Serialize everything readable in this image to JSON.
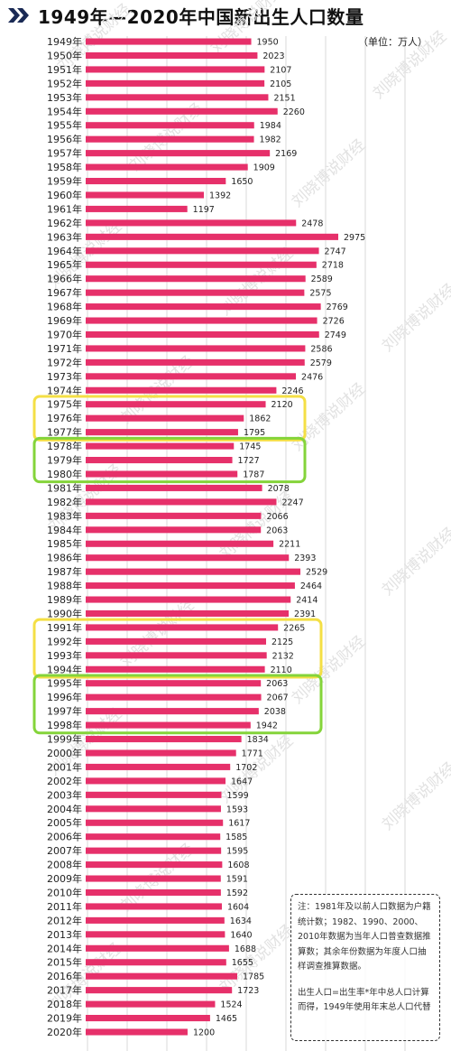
{
  "title": "1949年—2020年中国新出生人口数量",
  "unit": "（单位：万人）",
  "watermark": "刘晓博说财经",
  "note": {
    "para1": "注：1981年及以前人口数据为户籍统计数；1982、1990、2000、2010年数据为当年人口普查数据推算数；其余年份数据为年度人口抽样调查推算数据。",
    "para2": "出生人口=出生率*年中总人口计算而得，1949年使用年末总人口代替"
  },
  "colors": {
    "bar": "#e6306a",
    "bar_shadow": "#f4a9c0",
    "highlight_yellow": "#f4df45",
    "highlight_green": "#84d43a",
    "background_stripe": "#ececec"
  },
  "highlight_groups": [
    {
      "color": "yellow",
      "years": [
        "1975年",
        "1976年",
        "1977年"
      ]
    },
    {
      "color": "green",
      "years": [
        "1978年",
        "1979年",
        "1980年"
      ]
    },
    {
      "color": "yellow",
      "years": [
        "1991年",
        "1992年",
        "1993年",
        "1994年"
      ]
    },
    {
      "color": "green",
      "years": [
        "1995年",
        "1996年",
        "1997年",
        "1998年"
      ]
    }
  ],
  "chart_data": {
    "type": "bar",
    "orientation": "horizontal",
    "title": "1949年—2020年中国新出生人口数量",
    "unit": "万人",
    "categories": [
      "1949年",
      "1950年",
      "1951年",
      "1952年",
      "1953年",
      "1954年",
      "1955年",
      "1956年",
      "1957年",
      "1958年",
      "1959年",
      "1960年",
      "1961年",
      "1962年",
      "1963年",
      "1964年",
      "1965年",
      "1966年",
      "1967年",
      "1968年",
      "1969年",
      "1970年",
      "1971年",
      "1972年",
      "1973年",
      "1974年",
      "1975年",
      "1976年",
      "1977年",
      "1978年",
      "1979年",
      "1980年",
      "1981年",
      "1982年",
      "1983年",
      "1984年",
      "1985年",
      "1986年",
      "1987年",
      "1988年",
      "1989年",
      "1990年",
      "1991年",
      "1992年",
      "1993年",
      "1994年",
      "1995年",
      "1996年",
      "1997年",
      "1998年",
      "1999年",
      "2000年",
      "2001年",
      "2002年",
      "2003年",
      "2004年",
      "2005年",
      "2006年",
      "2007年",
      "2008年",
      "2009年",
      "2010年",
      "2011年",
      "2012年",
      "2013年",
      "2014年",
      "2015年",
      "2016年",
      "2017年",
      "2018年",
      "2019年",
      "2020年"
    ],
    "values": [
      1950,
      2023,
      2107,
      2105,
      2151,
      2260,
      1984,
      1982,
      2169,
      1909,
      1650,
      1392,
      1197,
      2478,
      2975,
      2747,
      2718,
      2589,
      2575,
      2769,
      2726,
      2749,
      2586,
      2579,
      2476,
      2246,
      2120,
      1862,
      1795,
      1745,
      1727,
      1787,
      2078,
      2247,
      2066,
      2063,
      2211,
      2393,
      2529,
      2464,
      2414,
      2391,
      2265,
      2125,
      2132,
      2110,
      2063,
      2067,
      2038,
      1942,
      1834,
      1771,
      1702,
      1647,
      1599,
      1593,
      1617,
      1585,
      1595,
      1608,
      1591,
      1592,
      1604,
      1634,
      1640,
      1688,
      1655,
      1785,
      1723,
      1524,
      1465,
      1200
    ],
    "value_labels": [
      "1950",
      "2023",
      "2107",
      "2105",
      "2151",
      "2260",
      "1984",
      "1982",
      "2169",
      "1909",
      "1650",
      "1392",
      "1197",
      "2478",
      "2975",
      "2747",
      "2718",
      "2589",
      "2575",
      "2769",
      "2726",
      "2749",
      "2586",
      "2579",
      "2476",
      "2246",
      "2120",
      "1862",
      "1795",
      "1745",
      "1727",
      "1787",
      "2078",
      "2247",
      "2066",
      "2063",
      "2211",
      "2393",
      "2529",
      "2464",
      "2414",
      "2391",
      "2265",
      "2125",
      "2132",
      "2110",
      "2063",
      "2067",
      "2038",
      "1942",
      "1834",
      "1771",
      "1702",
      "1647",
      "1599",
      "1593",
      "1617",
      "1585",
      "1595",
      "1608",
      "1591",
      "1592",
      "1604",
      "1634",
      "1640",
      "1688",
      "1655",
      "1785",
      "1723",
      "1524",
      "1465",
      "1200"
    ]
  }
}
